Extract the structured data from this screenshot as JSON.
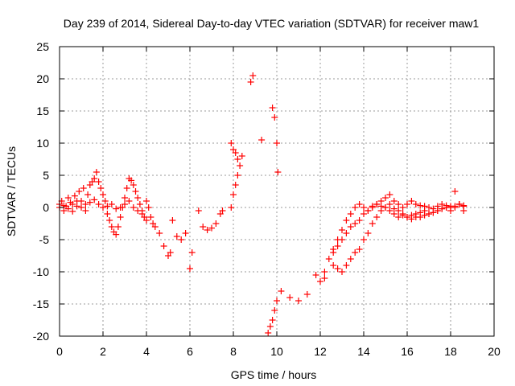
{
  "chart_data": {
    "type": "scatter",
    "title": "Day 239 of 2014, Sidereal Day-to-day VTEC variation (SDTVAR) for receiver maw1",
    "xlabel": "GPS time / hours",
    "ylabel": "SDTVAR / TECUs",
    "xlim": [
      0,
      20
    ],
    "ylim": [
      -20,
      25
    ],
    "grid": true,
    "marker": "+",
    "marker_color": "#ff0000",
    "x_ticks": [
      "0",
      "2",
      "4",
      "6",
      "8",
      "10",
      "12",
      "14",
      "16",
      "18",
      "20"
    ],
    "y_ticks": [
      "25",
      "20",
      "15",
      "10",
      "5",
      "0",
      "-5",
      "-10",
      "-15",
      "-20"
    ],
    "series": [
      {
        "name": "SDTVAR",
        "x": [
          0.0,
          0.1,
          0.2,
          0.3,
          0.4,
          0.5,
          0.6,
          0.7,
          0.8,
          0.9,
          1.0,
          1.1,
          1.2,
          1.3,
          1.4,
          1.5,
          1.6,
          1.7,
          1.8,
          1.9,
          2.0,
          2.1,
          2.2,
          2.3,
          2.4,
          2.5,
          2.6,
          2.7,
          2.8,
          2.9,
          3.0,
          3.1,
          3.2,
          3.3,
          3.4,
          3.5,
          3.6,
          3.7,
          3.8,
          3.9,
          4.0,
          4.1,
          4.2,
          4.3,
          4.4,
          4.6,
          4.8,
          5.0,
          5.1,
          5.2,
          5.4,
          5.6,
          5.8,
          6.0,
          6.1,
          6.4,
          6.6,
          6.8,
          7.0,
          7.2,
          7.4,
          7.5,
          7.9,
          8.0,
          8.1,
          8.2,
          8.3,
          8.4,
          8.8,
          8.9,
          9.3,
          9.8,
          9.9,
          10.0,
          10.05,
          0.0,
          0.2,
          0.4,
          0.6,
          0.8,
          1.0,
          1.2,
          1.4,
          1.6,
          1.8,
          2.0,
          2.2,
          2.4,
          2.6,
          2.8,
          3.0,
          3.2,
          3.4,
          3.6,
          3.8,
          4.0,
          7.9,
          8.0,
          8.1,
          8.2,
          9.6,
          9.7,
          9.8,
          9.9,
          10.0,
          10.2,
          10.6,
          11.0,
          11.4,
          11.8,
          12.2,
          12.6,
          12.0,
          12.2,
          12.4,
          12.6,
          12.8,
          13.0,
          13.2,
          13.4,
          13.6,
          13.8,
          14.0,
          14.2,
          14.4,
          14.6,
          14.8,
          15.0,
          15.2,
          15.4,
          15.6,
          15.8,
          16.0,
          16.2,
          16.4,
          16.6,
          16.8,
          17.0,
          17.2,
          17.4,
          17.6,
          17.8,
          18.0,
          18.2,
          18.4,
          18.6,
          12.8,
          13.0,
          13.2,
          13.4,
          13.6,
          13.8,
          14.0,
          14.2,
          14.4,
          14.6,
          14.8,
          15.0,
          15.2,
          15.4,
          15.6,
          15.8,
          16.0,
          16.2,
          16.4,
          16.6,
          16.8,
          17.0,
          17.2,
          17.4,
          17.6,
          17.8,
          18.0,
          18.2,
          18.4,
          18.6,
          12.6,
          12.8,
          13.0,
          13.2,
          13.4,
          13.6,
          13.8,
          14.0,
          14.2,
          14.4,
          14.6,
          14.8,
          15.0,
          15.2,
          15.4,
          15.6,
          15.8,
          16.0,
          16.2,
          16.4,
          16.6,
          16.8,
          17.0,
          17.2,
          17.4,
          17.6,
          17.8,
          18.0,
          18.2,
          18.4,
          18.6
        ],
        "y": [
          0.5,
          1.0,
          -0.5,
          0.2,
          1.5,
          0.8,
          -0.6,
          1.8,
          0.2,
          2.5,
          1.0,
          3.0,
          0.5,
          2.0,
          3.5,
          4.0,
          4.5,
          5.5,
          4.0,
          3.0,
          2.0,
          1.0,
          -1.0,
          -2.0,
          -3.0,
          -3.8,
          -4.2,
          -3.0,
          -1.5,
          0.0,
          1.5,
          3.0,
          4.5,
          4.2,
          3.5,
          2.5,
          1.5,
          0.5,
          -0.5,
          -1.5,
          1.0,
          0.0,
          -1.5,
          -2.5,
          -3.0,
          -4.0,
          -6.0,
          -7.5,
          -7.0,
          -2.0,
          -4.5,
          -5.0,
          -4.0,
          -9.5,
          -7.0,
          -0.5,
          -3.0,
          -3.5,
          -3.2,
          -2.5,
          -1.0,
          -0.5,
          0.0,
          2.0,
          3.5,
          5.0,
          6.5,
          8.0,
          19.5,
          20.5,
          10.5,
          15.5,
          14.0,
          10.0,
          5.5,
          0.0,
          0.3,
          -0.2,
          0.5,
          1.0,
          0.0,
          -0.5,
          0.8,
          1.2,
          0.5,
          0.0,
          0.2,
          0.5,
          -0.2,
          0.0,
          0.5,
          1.0,
          0.0,
          -0.5,
          -1.0,
          -2.0,
          10.0,
          9.0,
          8.5,
          7.5,
          -19.5,
          -18.5,
          -17.5,
          -16.0,
          -14.5,
          -13.0,
          -14.0,
          -14.5,
          -13.5,
          -10.5,
          -11.0,
          -9.0,
          -11.5,
          -10.0,
          -8.0,
          -6.5,
          -5.0,
          -3.5,
          -2.0,
          -1.0,
          0.0,
          0.5,
          0.0,
          -0.5,
          0.2,
          0.5,
          1.0,
          1.5,
          2.0,
          1.0,
          0.5,
          0.0,
          0.5,
          1.0,
          0.5,
          0.3,
          0.2,
          0.0,
          -0.2,
          0.2,
          0.5,
          0.3,
          0.0,
          0.2,
          0.5,
          0.3,
          -9.5,
          -10.0,
          -9.0,
          -8.0,
          -7.0,
          -6.5,
          -5.0,
          -4.0,
          -2.5,
          -1.5,
          -0.5,
          0.0,
          0.5,
          -0.2,
          -0.5,
          -1.0,
          -1.5,
          -1.2,
          -1.0,
          -0.8,
          -0.5,
          -1.0,
          -0.8,
          -0.5,
          -0.2,
          0.0,
          -0.5,
          0.0,
          0.5,
          0.2,
          -7.0,
          -6.0,
          -5.0,
          -4.0,
          -3.0,
          -2.5,
          -2.0,
          -1.0,
          -0.5,
          0.0,
          0.5,
          0.2,
          0.0,
          -0.5,
          -1.0,
          -1.5,
          -1.2,
          -1.5,
          -1.8,
          -1.5,
          -1.5,
          -1.2,
          -1.0,
          -0.8,
          -0.5,
          -0.2,
          0.0,
          0.2,
          2.5,
          0.5,
          -0.5
        ]
      }
    ]
  }
}
